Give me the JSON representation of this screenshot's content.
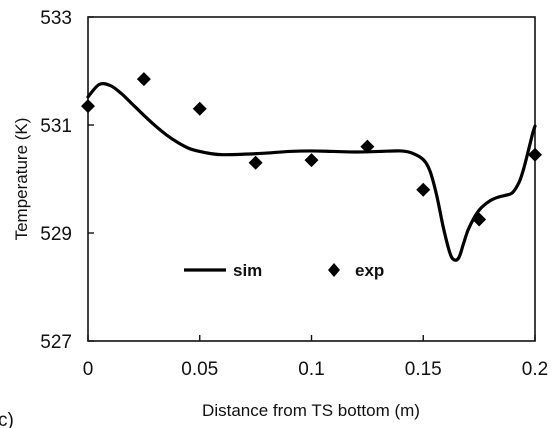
{
  "chart_data": {
    "type": "line",
    "title": "",
    "xlabel": "Distance from TS bottom  (m)",
    "ylabel": "Temperature (K)",
    "xlim": [
      0,
      0.2
    ],
    "ylim": [
      527,
      533
    ],
    "xticks": [
      0,
      0.05,
      0.1,
      0.15,
      0.2
    ],
    "xtick_labels": [
      "0",
      "0.05",
      "0.1",
      "0.15",
      "0.2"
    ],
    "yticks": [
      527,
      529,
      531,
      533
    ],
    "ytick_labels": [
      "527",
      "529",
      "531",
      "533"
    ],
    "grid": false,
    "legend_position": "center-left",
    "panel_label": "c)",
    "series": [
      {
        "name": "sim",
        "style": "line",
        "color": "#000000",
        "x": [
          0.0,
          0.005,
          0.01,
          0.015,
          0.02,
          0.025,
          0.03,
          0.035,
          0.04,
          0.045,
          0.05,
          0.055,
          0.06,
          0.07,
          0.08,
          0.09,
          0.1,
          0.11,
          0.12,
          0.13,
          0.14,
          0.145,
          0.15,
          0.153,
          0.156,
          0.159,
          0.162,
          0.164,
          0.166,
          0.168,
          0.17,
          0.173,
          0.176,
          0.18,
          0.184,
          0.187,
          0.19,
          0.193,
          0.195,
          0.197,
          0.199,
          0.2
        ],
        "y": [
          531.52,
          531.75,
          531.73,
          531.58,
          531.38,
          531.18,
          530.99,
          530.82,
          530.68,
          530.57,
          530.51,
          530.47,
          530.45,
          530.46,
          530.48,
          530.51,
          530.52,
          530.51,
          530.5,
          530.51,
          530.52,
          530.48,
          530.36,
          530.15,
          529.7,
          529.1,
          528.62,
          528.5,
          528.55,
          528.8,
          529.05,
          529.3,
          529.47,
          529.6,
          529.67,
          529.7,
          529.75,
          529.95,
          530.2,
          530.52,
          530.85,
          530.98
        ]
      },
      {
        "name": "exp",
        "style": "marker",
        "marker": "diamond",
        "color": "#000000",
        "x": [
          0.0,
          0.025,
          0.05,
          0.075,
          0.1,
          0.125,
          0.15,
          0.175,
          0.2
        ],
        "y": [
          531.35,
          531.85,
          531.3,
          530.3,
          530.35,
          530.6,
          529.8,
          529.25,
          530.45
        ]
      }
    ]
  }
}
